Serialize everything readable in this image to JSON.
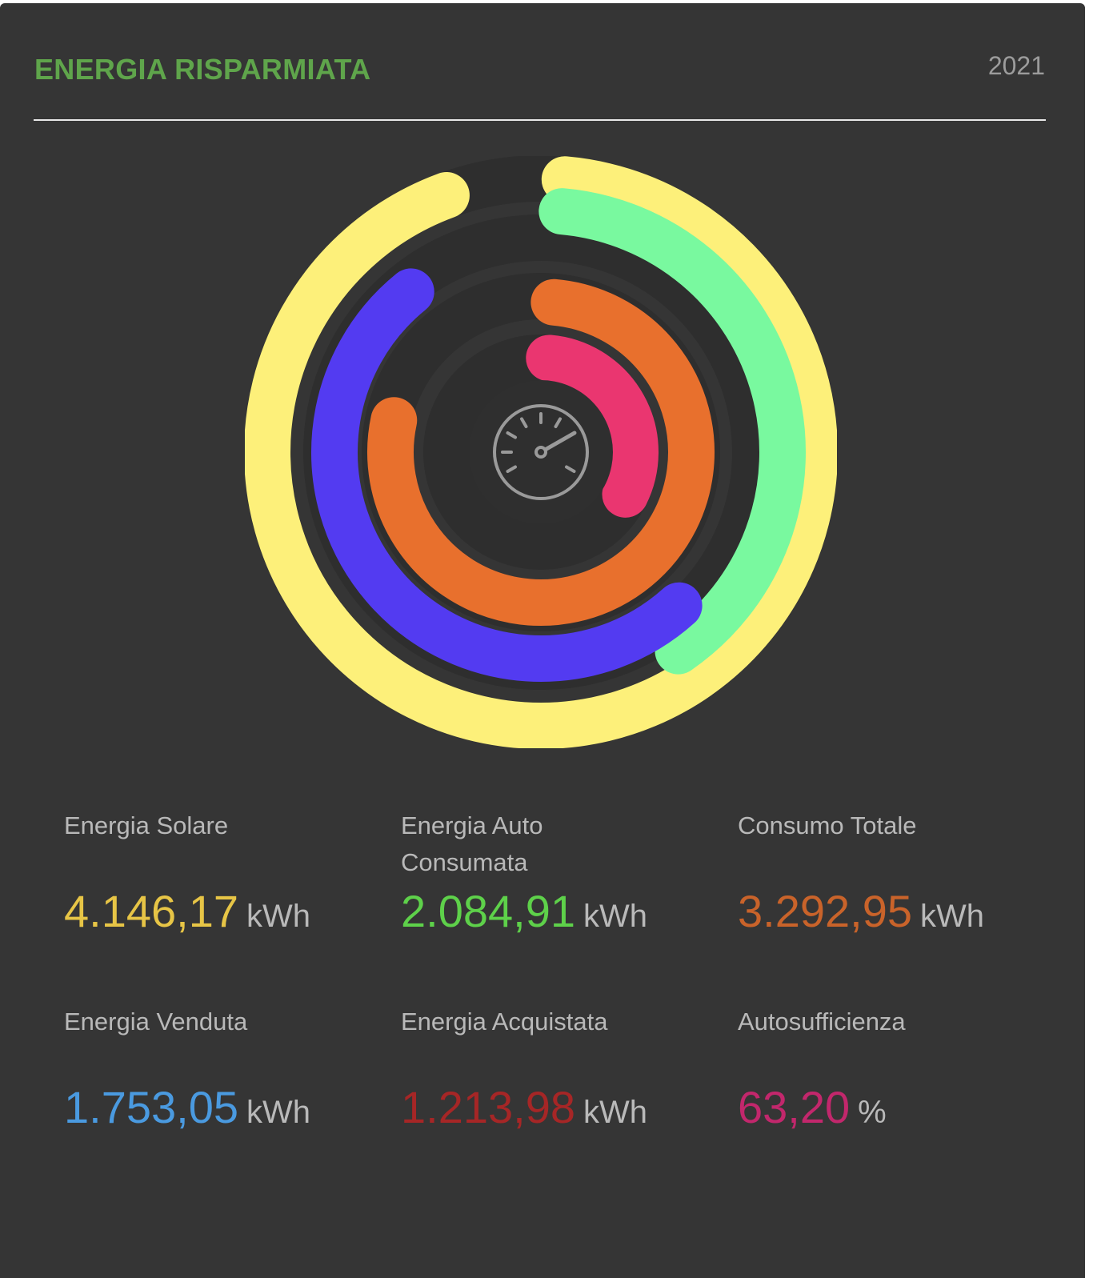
{
  "header": {
    "title": "ENERGIA RISPARMIATA",
    "year": "2021"
  },
  "colors": {
    "background": "#353535",
    "title": "#5fa54b",
    "solar": "#fdf07a",
    "self_consumed": "#79f99f",
    "sold": "#533bf1",
    "total_consumption": "#e8702d",
    "self_sufficiency": "#ea3670"
  },
  "gauge": {
    "icon": "speedometer-icon"
  },
  "rings": [
    {
      "name": "Energia Solare",
      "fraction": 0.93,
      "color": "#fdf07a"
    },
    {
      "name": "Energia Auto Consumata",
      "fraction": 0.39,
      "color": "#79f99f"
    },
    {
      "name": "Energia Venduta",
      "fraction": 0.62,
      "color": "#533bf1"
    },
    {
      "name": "Consumo Totale",
      "fraction": 0.77,
      "color": "#e8702d"
    },
    {
      "name": "Autosufficienza",
      "fraction": 0.31,
      "color": "#ea3670"
    }
  ],
  "stats": [
    {
      "label": "Energia Solare",
      "value": "4.146,17",
      "unit": "kWh",
      "color": "#e7c546"
    },
    {
      "label": "Energia Auto Consumata",
      "value": "2.084,91",
      "unit": "kWh",
      "color": "#5ed14a"
    },
    {
      "label": "Consumo Totale",
      "value": "3.292,95",
      "unit": "kWh",
      "color": "#c9632a"
    },
    {
      "label": "Energia Venduta",
      "value": "1.753,05",
      "unit": "kWh",
      "color": "#4a9ae0"
    },
    {
      "label": "Energia Acquistata",
      "value": "1.213,98",
      "unit": "kWh",
      "color": "#a62626"
    },
    {
      "label": "Autosufficienza",
      "value": "63,20",
      "unit": "%",
      "color": "#c2276c"
    }
  ]
}
